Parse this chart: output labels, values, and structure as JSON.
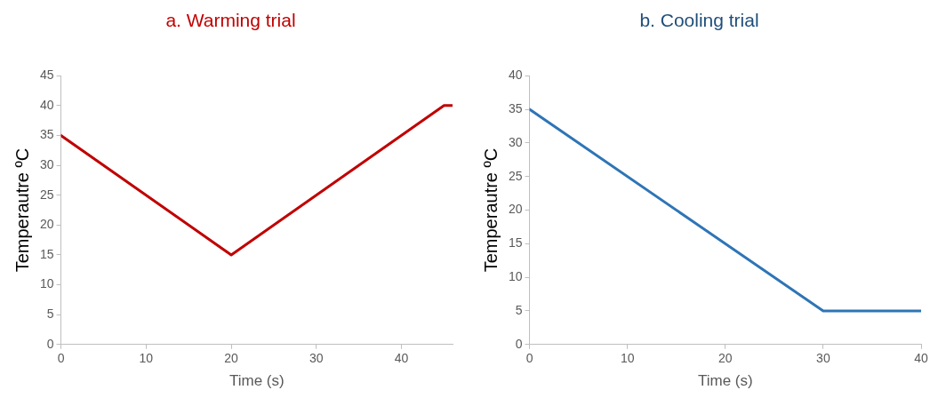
{
  "chart_data": [
    {
      "type": "line",
      "title": "a. Warming trial",
      "xlabel": "Time (s)",
      "ylabel": "Temperautre ºC",
      "x": [
        0,
        20,
        45,
        46
      ],
      "series": [
        {
          "color": "#c00000",
          "values": [
            35,
            15,
            40,
            40
          ]
        }
      ],
      "xlim": [
        0,
        46
      ],
      "xticks": [
        0,
        10,
        20,
        30,
        40
      ],
      "ylim": [
        0,
        45
      ],
      "yticks": [
        0,
        5,
        10,
        15,
        20,
        25,
        30,
        35,
        40,
        45
      ],
      "grid": false,
      "legend": false,
      "marker": "none",
      "line_style": "solid"
    },
    {
      "type": "line",
      "title": "b. Cooling trial",
      "xlabel": "Time (s)",
      "ylabel": "Temperautre ºC",
      "x": [
        0,
        30,
        40
      ],
      "series": [
        {
          "color": "#2e75b6",
          "values": [
            35,
            5,
            5
          ]
        }
      ],
      "xlim": [
        0,
        40
      ],
      "xticks": [
        0,
        10,
        20,
        30,
        40
      ],
      "ylim": [
        0,
        40
      ],
      "yticks": [
        0,
        5,
        10,
        15,
        20,
        25,
        30,
        35,
        40
      ],
      "grid": false,
      "legend": false,
      "marker": "none",
      "line_style": "solid"
    }
  ]
}
